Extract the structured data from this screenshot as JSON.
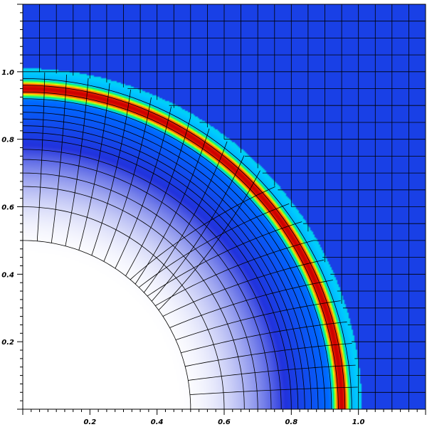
{
  "chart_data": {
    "type": "heatmap",
    "title": "",
    "xlabel": "",
    "ylabel": "",
    "xlim": [
      0,
      1.2
    ],
    "ylim": [
      0,
      1.2
    ],
    "xticks": [
      0.2,
      0.4,
      0.6,
      0.8,
      1.0
    ],
    "xtick_labels": [
      "0.2",
      "0.4",
      "0.6",
      "0.8",
      "1.0"
    ],
    "yticks": [
      0.2,
      0.4,
      0.6,
      0.8,
      1.0
    ],
    "ytick_labels": [
      "0.2",
      "0.4",
      "0.6",
      "0.8",
      "1.0"
    ],
    "field": {
      "description_free": true,
      "shock_radius": 0.95,
      "shock_width": 0.03,
      "inner_clear_radius": 0.45,
      "ambient_value": 0.18
    },
    "colormap": [
      "#ffffff",
      "#2233dd",
      "#0066ff",
      "#00ccff",
      "#00ff66",
      "#ffff00",
      "#ff3300",
      "#cc0000"
    ],
    "mesh": {
      "radial_lines": 24,
      "arc_radii": [
        0.5,
        0.6,
        0.66,
        0.7,
        0.74,
        0.77,
        0.8,
        0.82,
        0.84,
        0.86,
        0.88,
        0.9,
        0.92,
        0.94,
        0.96,
        0.98
      ],
      "outer_grid_spacing": 0.05
    }
  }
}
